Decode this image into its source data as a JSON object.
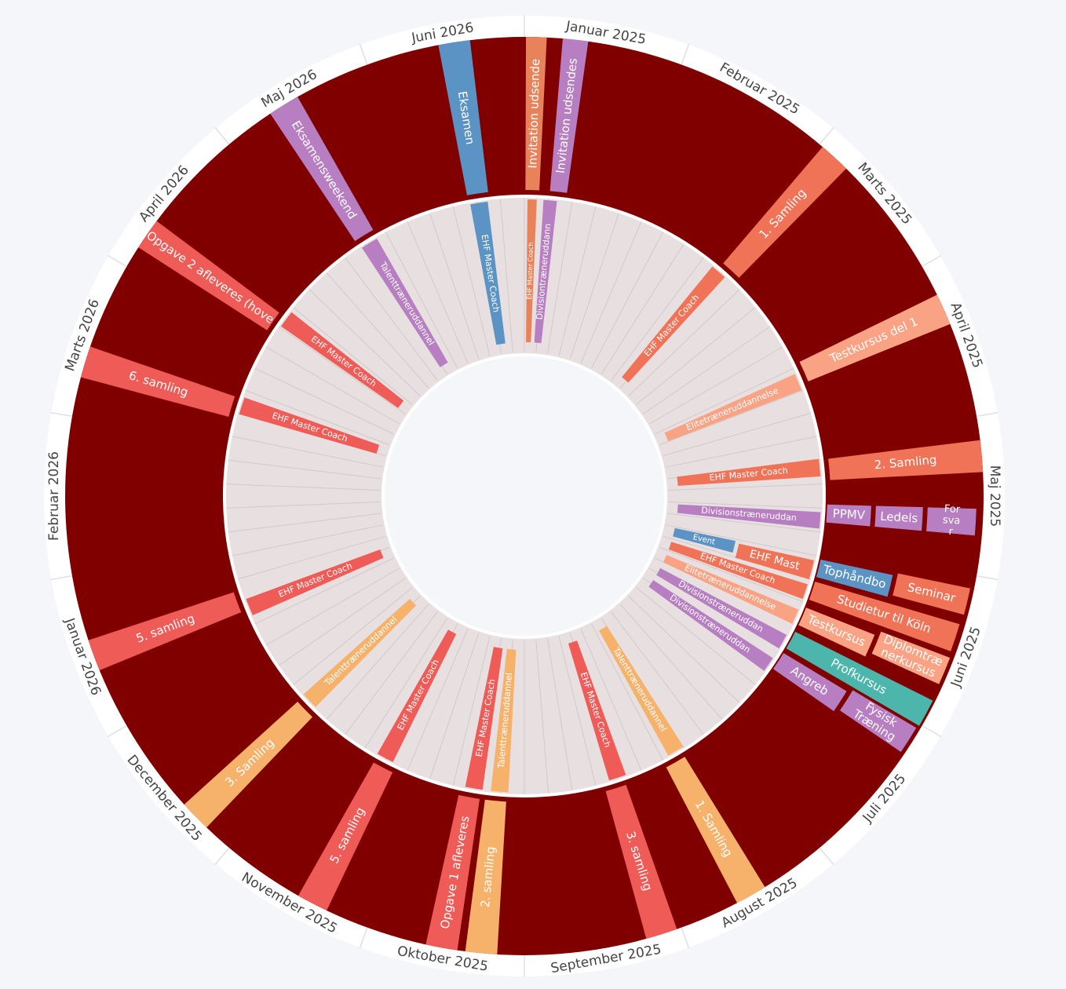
{
  "months": [
    "Januar 2025",
    "Februar 2025",
    "Marts 2025",
    "April 2025",
    "Maj 2025",
    "Juni 2025",
    "Juli 2025",
    "August 2025",
    "September 2025",
    "Oktober 2025",
    "November 2025",
    "December 2025",
    "Januar 2026",
    "Februar 2026",
    "Marts 2026",
    "April 2026",
    "Maj 2026",
    "Juni 2026"
  ],
  "outer_events": [
    {
      "label": "Invitation udsende"
    },
    {
      "label": "Invitation udsendes"
    },
    {
      "label": "1. Samling"
    },
    {
      "label": "Testkursus del 1"
    },
    {
      "label": "2. Samling"
    },
    {
      "label": "PPMV"
    },
    {
      "label": "Ledels"
    },
    {
      "lines": [
        "For",
        "sva",
        "r"
      ]
    },
    {
      "label": "Tophåndbo"
    },
    {
      "label": "Seminar"
    },
    {
      "label": "Studietur til Köln"
    },
    {
      "label": "Testkursus"
    },
    {
      "lines": [
        "Diplomtræ",
        "nerkursus"
      ]
    },
    {
      "label": "Profkursus"
    },
    {
      "label": "Angreb"
    },
    {
      "lines": [
        "Fysisk",
        "Træning"
      ]
    },
    {
      "label": "1. Samling"
    },
    {
      "label": "3. samling"
    },
    {
      "label": "2. samling"
    },
    {
      "label": "Opgave 1 afleveres"
    },
    {
      "label": "5. samling"
    },
    {
      "label": "3. Samling"
    },
    {
      "label": "5. samling"
    },
    {
      "label": "6. samling"
    },
    {
      "label": "Opgave 2 afleveres (hove"
    },
    {
      "label": "Eksamensweekend"
    },
    {
      "label": "Eksamen"
    }
  ],
  "inner_events": [
    {
      "label": "EHF Master Coach"
    },
    {
      "label": "Divisiontræneruddann"
    },
    {
      "label": "EHF Master Coach"
    },
    {
      "label": "Elitetræneruddannelse"
    },
    {
      "label": "EHF Master Coach"
    },
    {
      "label": "Divisionstræneruddan"
    },
    {
      "label": "Event"
    },
    {
      "label": "EHF Mast"
    },
    {
      "label": "EHF Master Coach"
    },
    {
      "label": "Elitetræneruddannelse"
    },
    {
      "label": "Divisionstræneruddan"
    },
    {
      "label": "Divisionstræneruddan"
    },
    {
      "label": "Talenttræneruddannel"
    },
    {
      "label": "EHF Master Coach"
    },
    {
      "label": "Talenttræneruddannel"
    },
    {
      "label": "EHF Master Coach"
    },
    {
      "label": "EHF Master Coach"
    },
    {
      "label": "Talenttræneruddannel"
    },
    {
      "label": "EHF Master Coach"
    },
    {
      "label": "EHF Master Coach"
    },
    {
      "label": "EHF Master Coach"
    },
    {
      "label": "Talenttræneruddannel"
    },
    {
      "label": "EHF Master Coach"
    }
  ]
}
